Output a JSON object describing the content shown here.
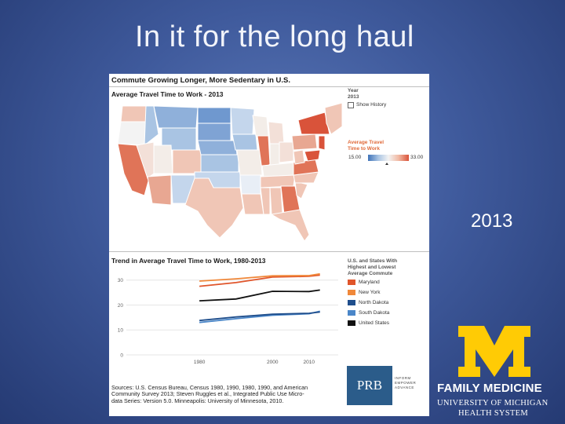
{
  "slide": {
    "title": "In it for the long haul",
    "year_label": "2013"
  },
  "figure": {
    "title": "Commute Growing Longer, More Sedentary in U.S.",
    "map_title": "Average Travel Time to Work - 2013",
    "year_control": {
      "label": "Year",
      "value": "2013",
      "show_history_label": "Show History"
    },
    "map_legend": {
      "title_line1": "Average Travel",
      "title_line2": "Time to Work",
      "min_label": "15.00",
      "max_label": "33.00"
    },
    "trend_title": "Trend in Average Travel Time to Work, 1980-2013",
    "trend_legend": {
      "title_line1": "U.S. and States With",
      "title_line2": "Highest and Lowest",
      "title_line3": "Average Commute",
      "items": [
        {
          "label": "Maryland",
          "color": "#e0552b"
        },
        {
          "label": "New York",
          "color": "#f0883a"
        },
        {
          "label": "North Dakota",
          "color": "#1f4e8c"
        },
        {
          "label": "South Dakota",
          "color": "#4a86c8"
        },
        {
          "label": "United States",
          "color": "#111111"
        }
      ]
    },
    "sources": {
      "line1": "Sources: U.S. Census Bureau, Census 1980, 1990, 1980, 1990, and American",
      "line2": "Community Survey 2013; Steven Ruggles et al., Integrated Public Use Micro-",
      "line3": "data Series: Version 5.0. Minneapolis: University of Minnesota, 2010."
    },
    "prb": {
      "label": "PRB",
      "side1": "INFORM",
      "side2": "EMPOWER",
      "side3": "ADVANCE"
    }
  },
  "branding": {
    "department": "FAMILY MEDICINE",
    "university_line1": "UNIVERSITY OF MICHIGAN",
    "university_line2": "HEALTH SYSTEM",
    "maize_color": "#ffcb05"
  },
  "chart_data": {
    "type": "line",
    "title": "Trend in Average Travel Time to Work, 1980-2013",
    "xlabel": "",
    "ylabel": "",
    "x": [
      1980,
      1990,
      2000,
      2010,
      2013
    ],
    "x_ticks": [
      "1980",
      "2000",
      "2010"
    ],
    "y_ticks": [
      "0",
      "10",
      "20",
      "30"
    ],
    "ylim": [
      0,
      34
    ],
    "xlim": [
      1960,
      2018
    ],
    "series": [
      {
        "name": "Maryland",
        "color": "#e0552b",
        "values": [
          27.5,
          29.0,
          31.2,
          31.5,
          32.0
        ]
      },
      {
        "name": "New York",
        "color": "#f0883a",
        "values": [
          29.6,
          30.5,
          31.7,
          31.8,
          32.5
        ]
      },
      {
        "name": "United States",
        "color": "#111111",
        "values": [
          21.7,
          22.4,
          25.5,
          25.4,
          26.0
        ]
      },
      {
        "name": "South Dakota",
        "color": "#4a86c8",
        "values": [
          13.0,
          14.5,
          15.9,
          16.5,
          17.5
        ]
      },
      {
        "name": "North Dakota",
        "color": "#1f4e8c",
        "values": [
          13.8,
          15.2,
          16.3,
          16.7,
          17.2
        ]
      }
    ]
  }
}
